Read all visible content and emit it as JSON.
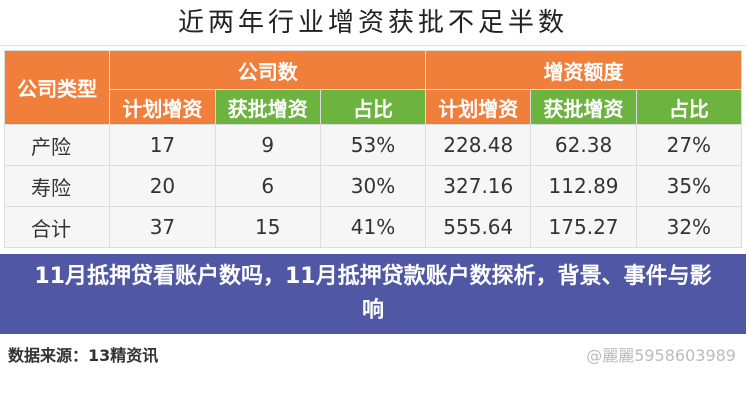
{
  "title": "近两年行业增资获批不足半数",
  "headers": {
    "type": "公司类型",
    "group1": "公司数",
    "group2": "增资额度",
    "sub": [
      "计划增资",
      "获批增资",
      "占比",
      "计划增资",
      "获批增资",
      "占比"
    ]
  },
  "rows": [
    {
      "label": "产险",
      "values": [
        "17",
        "9",
        "53%",
        "228.48",
        "62.38",
        "27%"
      ]
    },
    {
      "label": "寿险",
      "values": [
        "20",
        "6",
        "30%",
        "327.16",
        "112.89",
        "35%"
      ]
    },
    {
      "label": "合计",
      "values": [
        "37",
        "15",
        "41%",
        "555.64",
        "175.27",
        "32%"
      ]
    }
  ],
  "source": "数据来源：13精资讯",
  "weibo": "@麗麗5958603989",
  "banner": "11月抵押贷看账户数吗，11月抵押贷款账户数探析，背景、事件与影响",
  "colors": {
    "orange": "#f07f3c",
    "green": "#6cb33f",
    "banner": "#5058a5"
  }
}
